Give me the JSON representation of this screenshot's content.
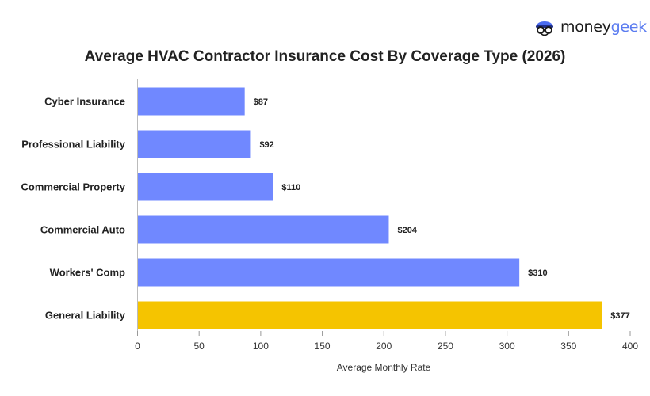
{
  "brand": {
    "part1": "money",
    "part2": "geek",
    "accent": "#5b7cf0"
  },
  "chart_data": {
    "type": "bar",
    "orientation": "horizontal",
    "title": "Average HVAC Contractor Insurance Cost By Coverage Type (2026)",
    "xlabel": "Average Monthly Rate",
    "ylabel": "",
    "categories": [
      "Cyber Insurance",
      "Professional Liability",
      "Commercial Property",
      "Commercial Auto",
      "Workers' Comp",
      "General Liability"
    ],
    "values": [
      87,
      92,
      110,
      204,
      310,
      377
    ],
    "data_labels": [
      "$87",
      "$92",
      "$110",
      "$204",
      "$310",
      "$377"
    ],
    "colors": [
      "#7088ff",
      "#7088ff",
      "#7088ff",
      "#7088ff",
      "#7088ff",
      "#f5c400"
    ],
    "xlim": [
      0,
      400
    ],
    "xticks": [
      "0",
      "50",
      "100",
      "150",
      "200",
      "250",
      "300",
      "350",
      "400"
    ],
    "grid": false
  }
}
